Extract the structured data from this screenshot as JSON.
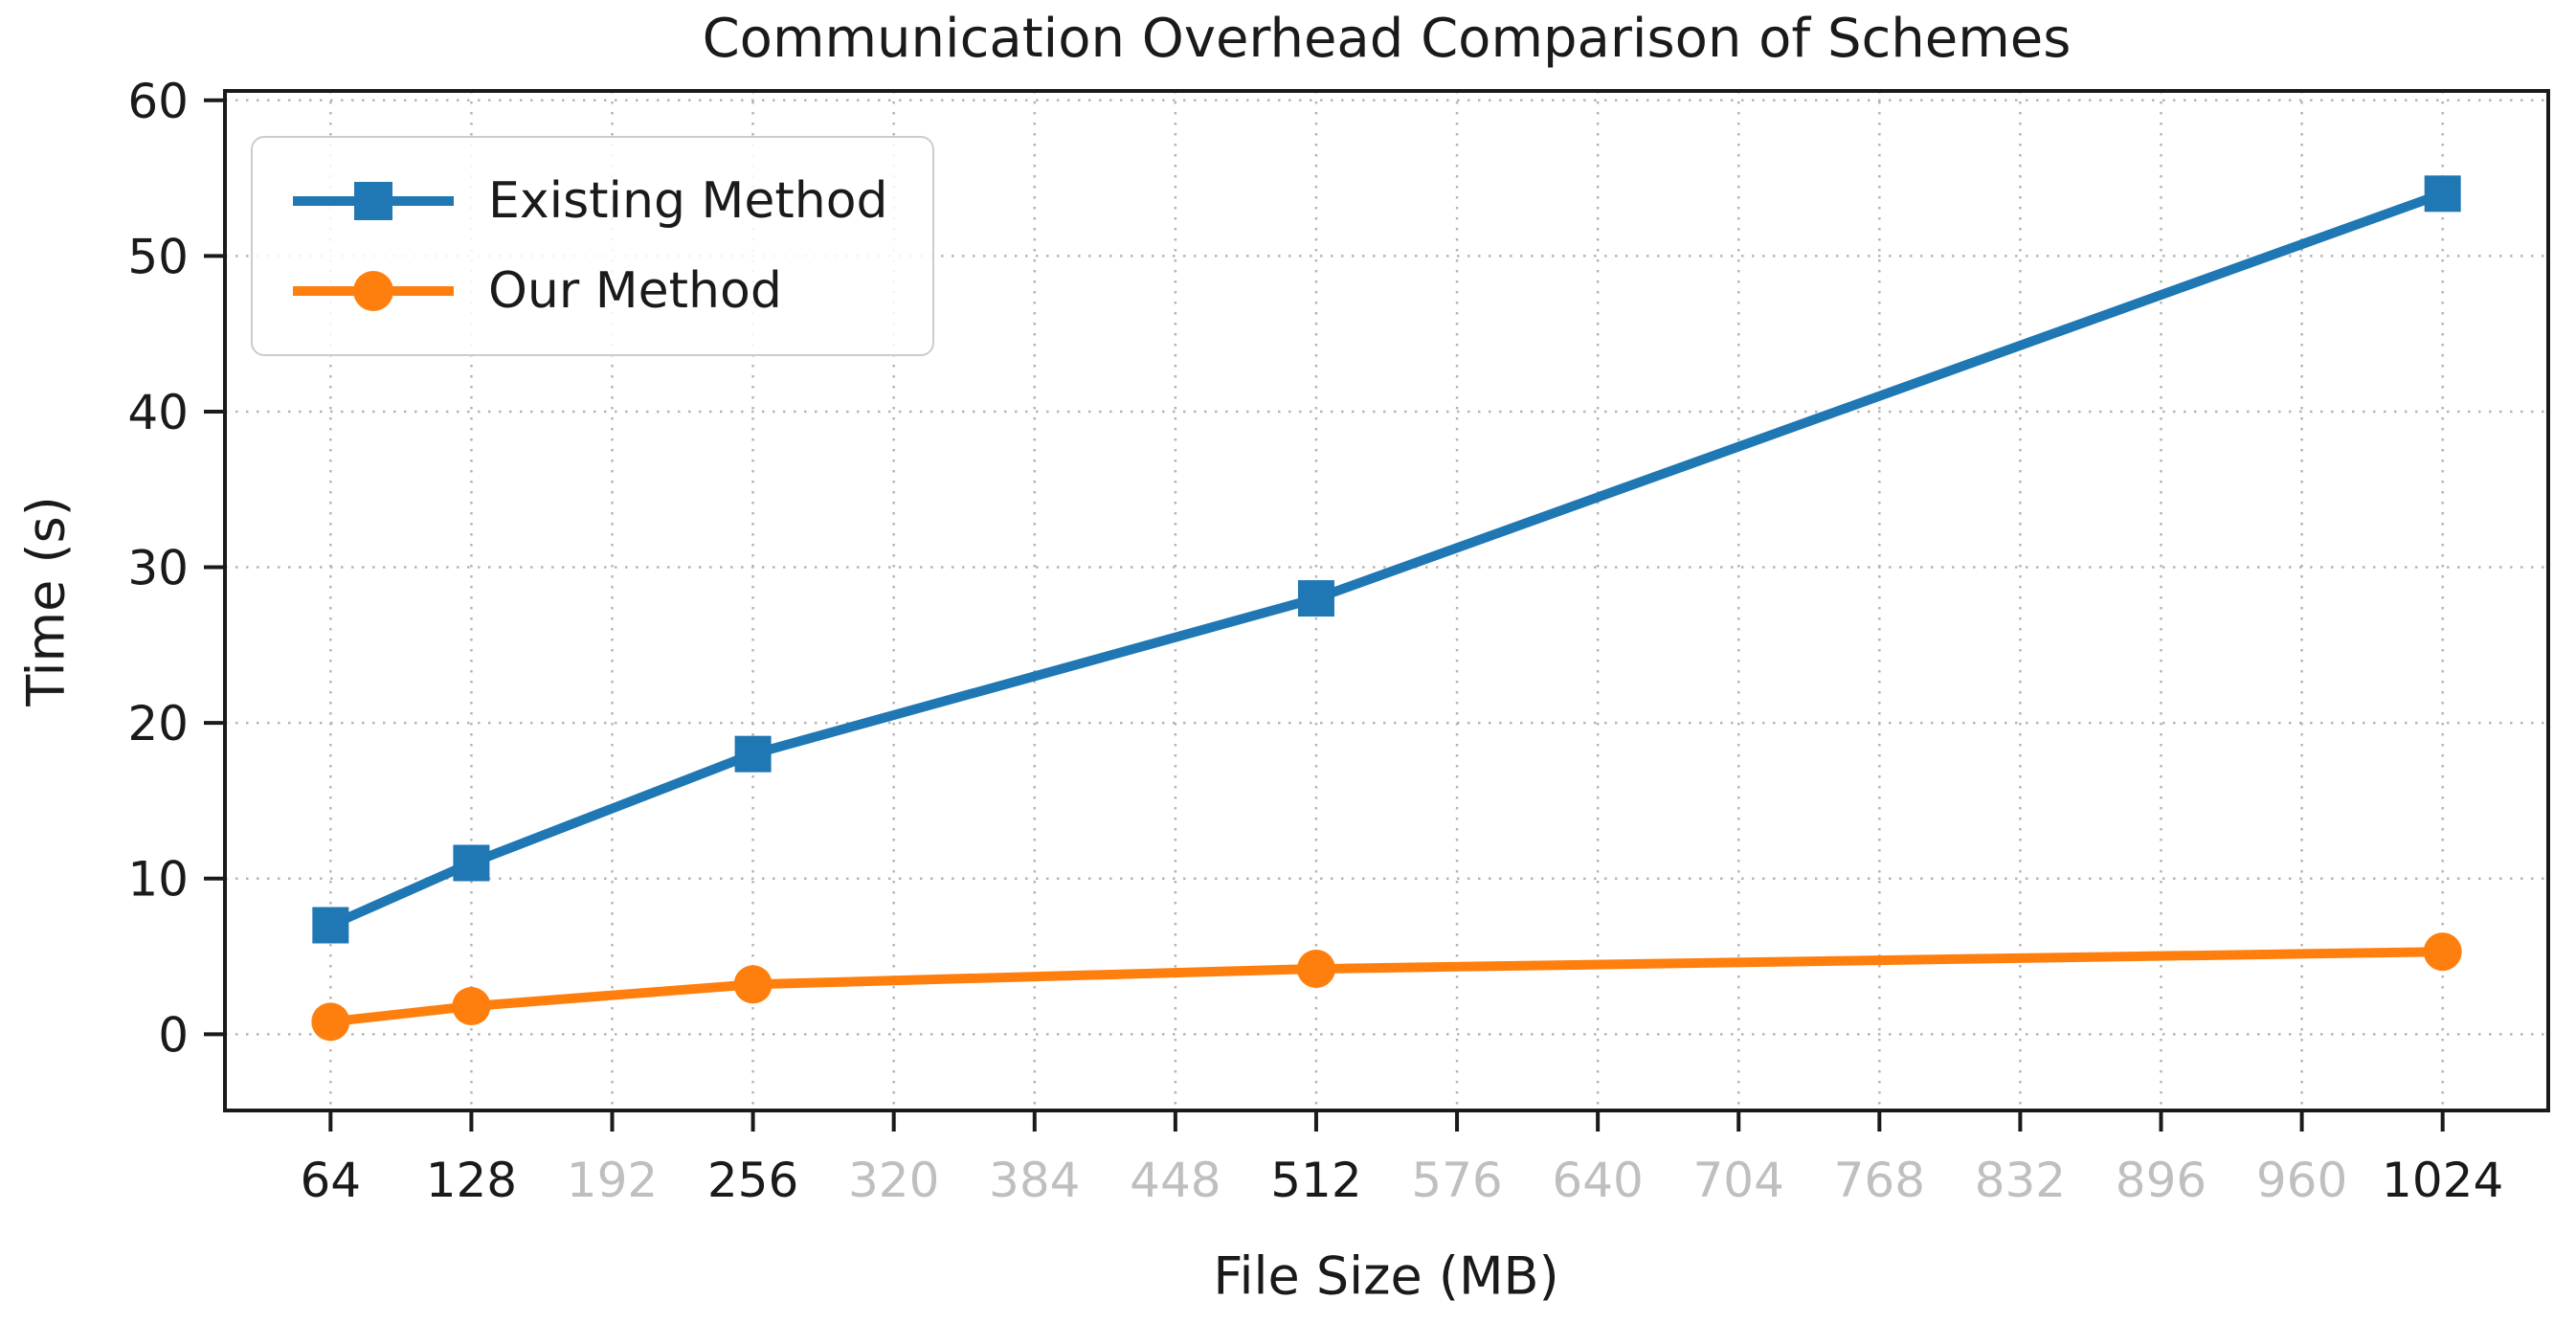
{
  "figure": {
    "background_color": "#ffffff"
  },
  "chart_data": {
    "type": "line",
    "title": "Communication Overhead Comparison of Schemes",
    "xlabel": "File Size (MB)",
    "ylabel": "Time (s)",
    "x": [
      64,
      128,
      256,
      512,
      1024
    ],
    "series": [
      {
        "name": "Existing Method",
        "marker": "square",
        "color": "#1f77b4",
        "values": [
          7,
          11,
          18,
          28,
          54
        ]
      },
      {
        "name": "Our Method",
        "marker": "circle",
        "color": "#ff7f0e",
        "values": [
          0.8,
          1.8,
          3.2,
          4.2,
          5.3
        ]
      }
    ],
    "xticks": [
      64,
      128,
      192,
      256,
      320,
      384,
      448,
      512,
      576,
      640,
      704,
      768,
      832,
      896,
      960,
      1024
    ],
    "emphasized_xticks": [
      64,
      128,
      256,
      512,
      1024
    ],
    "yticks": [
      0,
      10,
      20,
      30,
      40,
      50,
      60
    ],
    "xlim": [
      16,
      1072
    ],
    "ylim": [
      -4.9,
      60.6
    ],
    "grid": true,
    "grid_style": "dotted",
    "legend_position": "upper-left",
    "colors": {
      "axis": "#1a1a1a",
      "grid": "#b5b5b5",
      "tick_label": "#1a1a1a",
      "deemphasized_tick_label": "#bfbfbf",
      "legend_border": "#cccccc"
    }
  }
}
